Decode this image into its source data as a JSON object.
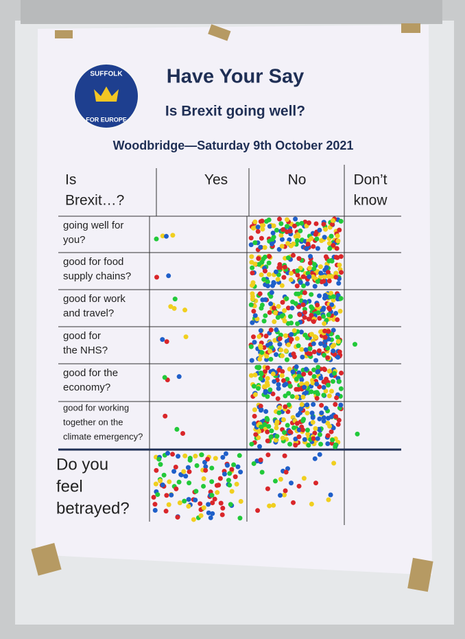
{
  "header": {
    "logo_top": "SUFFOLK",
    "logo_bottom": "FOR EUROPE",
    "title": "Have Your Say",
    "subtitle": "Is Brexit going well?",
    "event": "Woodbridge—Saturday 9th October 2021"
  },
  "table": {
    "columns": [
      [
        "Is",
        "Brexit…?"
      ],
      [
        "Yes"
      ],
      [
        "No"
      ],
      [
        "Don’t",
        "know"
      ]
    ],
    "rows": [
      {
        "label": [
          "going well for",
          "you?"
        ],
        "yes": 4,
        "no": 140,
        "dont_know": 0
      },
      {
        "label": [
          "good for food",
          "supply chains?"
        ],
        "yes": 2,
        "no": 150,
        "dont_know": 0
      },
      {
        "label": [
          "good for work",
          "and travel?"
        ],
        "yes": 4,
        "no": 150,
        "dont_know": 0
      },
      {
        "label": [
          "good for",
          "the NHS?"
        ],
        "yes": 3,
        "no": 150,
        "dont_know": 1
      },
      {
        "label": [
          "good for the",
          "economy?"
        ],
        "yes": 3,
        "no": 155,
        "dont_know": 0
      },
      {
        "label": [
          "good for working",
          "together on the",
          "climate emergency?"
        ],
        "yes": 3,
        "no": 175,
        "dont_know": 1
      }
    ],
    "final": {
      "label": [
        "Do you",
        "feel",
        "betrayed?"
      ],
      "yes": 115,
      "no": 30
    }
  }
}
